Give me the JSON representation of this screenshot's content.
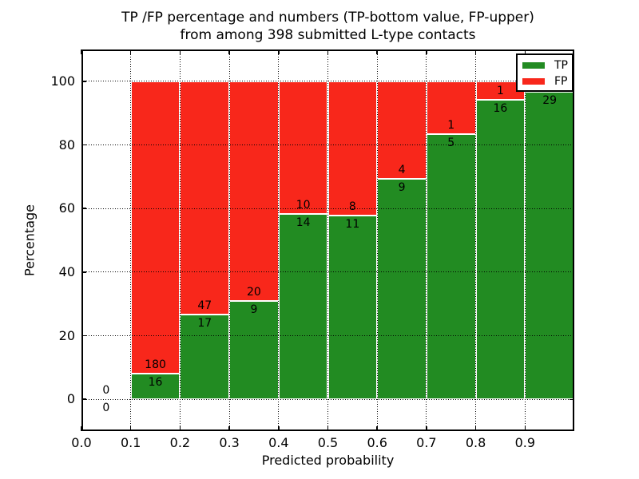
{
  "title": {
    "line1": "TP /FP percentage and numbers (TP-bottom value, FP-upper)",
    "line2": "from among 398 submitted L-type contacts"
  },
  "chart_data": {
    "type": "bar",
    "stacked": true,
    "title_lines": [
      "TP /FP percentage and numbers (TP-bottom value, FP-upper)",
      "from among 398 submitted L-type contacts"
    ],
    "xlabel": "Predicted probability",
    "ylabel": "Percentage",
    "xlim": [
      0.0,
      1.0
    ],
    "ylim": [
      -10,
      110
    ],
    "grid": true,
    "grid_style": "dotted",
    "total_contacts": 398,
    "colors": {
      "tp": "#228b22",
      "fp": "#f8271b",
      "axis": "#000000"
    },
    "xticks": [
      {
        "v": 0.0,
        "label": "0.0"
      },
      {
        "v": 0.1,
        "label": "0.1"
      },
      {
        "v": 0.2,
        "label": "0.2"
      },
      {
        "v": 0.3,
        "label": "0.3"
      },
      {
        "v": 0.4,
        "label": "0.4"
      },
      {
        "v": 0.5,
        "label": "0.5"
      },
      {
        "v": 0.6,
        "label": "0.6"
      },
      {
        "v": 0.7,
        "label": "0.7"
      },
      {
        "v": 0.8,
        "label": "0.8"
      },
      {
        "v": 0.9,
        "label": "0.9"
      }
    ],
    "yticks": [
      {
        "v": 0,
        "label": "0"
      },
      {
        "v": 20,
        "label": "20"
      },
      {
        "v": 40,
        "label": "40"
      },
      {
        "v": 60,
        "label": "60"
      },
      {
        "v": 80,
        "label": "80"
      },
      {
        "v": 100,
        "label": "100"
      }
    ],
    "legend": {
      "position": "upper-right",
      "entries": [
        {
          "key": "tp",
          "label": "TP"
        },
        {
          "key": "fp",
          "label": "FP"
        }
      ]
    },
    "bins": [
      {
        "x0": 0.0,
        "x1": 0.1,
        "tp": 0,
        "fp": 0
      },
      {
        "x0": 0.1,
        "x1": 0.2,
        "tp": 16,
        "fp": 180
      },
      {
        "x0": 0.2,
        "x1": 0.3,
        "tp": 17,
        "fp": 47
      },
      {
        "x0": 0.3,
        "x1": 0.4,
        "tp": 9,
        "fp": 20
      },
      {
        "x0": 0.4,
        "x1": 0.5,
        "tp": 14,
        "fp": 10
      },
      {
        "x0": 0.5,
        "x1": 0.6,
        "tp": 11,
        "fp": 8
      },
      {
        "x0": 0.6,
        "x1": 0.7,
        "tp": 9,
        "fp": 4
      },
      {
        "x0": 0.7,
        "x1": 0.8,
        "tp": 5,
        "fp": 1
      },
      {
        "x0": 0.8,
        "x1": 0.9,
        "tp": 16,
        "fp": 1
      },
      {
        "x0": 0.9,
        "x1": 1.0,
        "tp": 29,
        "fp": 1,
        "fp_label_visible": false
      }
    ]
  }
}
